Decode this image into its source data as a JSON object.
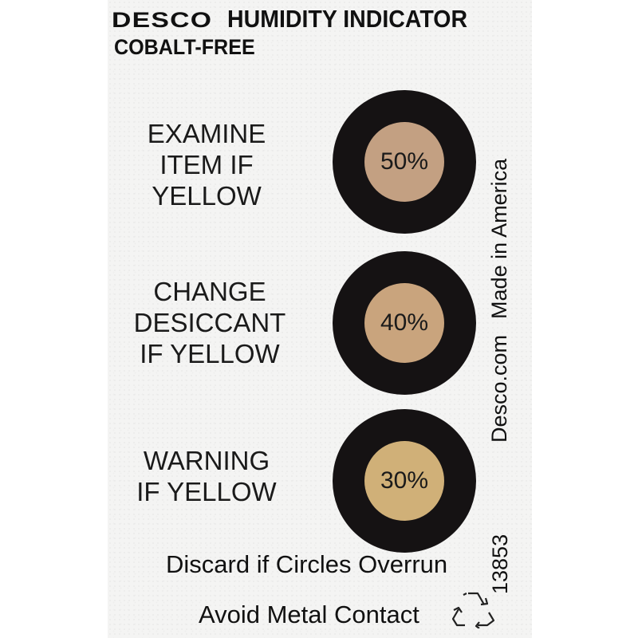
{
  "label": {
    "brand": "DESCO",
    "title": "HUMIDITY INDICATOR",
    "subtitle": "COBALT-FREE",
    "indicators": [
      {
        "lines": [
          "EXAMINE",
          "ITEM IF",
          "YELLOW"
        ],
        "value": "50%",
        "inner_color": "#c3a082"
      },
      {
        "lines": [
          "CHANGE",
          "DESICCANT",
          "IF YELLOW"
        ],
        "value": "40%",
        "inner_color": "#c9a47d"
      },
      {
        "lines": [
          "WARNING",
          "IF YELLOW"
        ],
        "value": "30%",
        "inner_color": "#d0b078"
      }
    ],
    "discard_text": "Discard if Circles Overrun",
    "avoid_text": "Avoid Metal Contact",
    "website": "Desco.com",
    "origin": "Made in America",
    "part_number": "13853",
    "recycle_icon": "recycle-icon"
  }
}
